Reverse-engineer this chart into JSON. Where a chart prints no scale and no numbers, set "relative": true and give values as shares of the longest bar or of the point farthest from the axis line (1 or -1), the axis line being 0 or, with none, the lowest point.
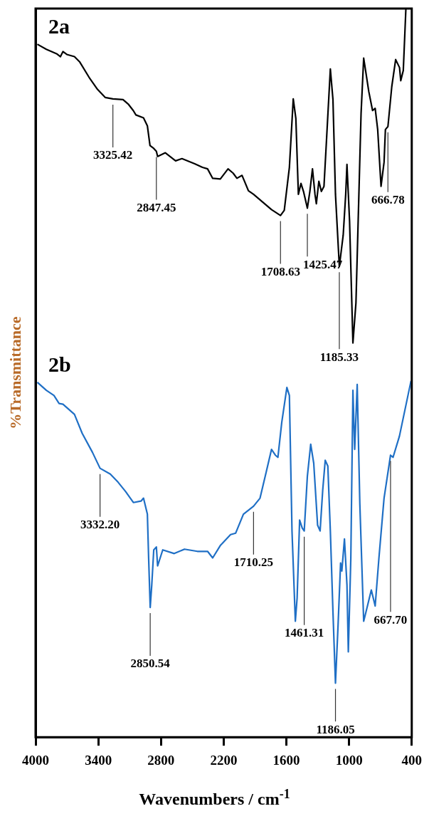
{
  "chart_data": {
    "type": "line",
    "xlabel": "Wavenumbers / cm$^{-1}$",
    "ylabel": "%Transmittance",
    "relative": true,
    "xlim": [
      4000,
      400
    ],
    "xticks": [
      4000,
      3400,
      2800,
      2200,
      1600,
      1000,
      400
    ],
    "legend": false,
    "grid": false,
    "marker": "none",
    "line_style": "solid",
    "series": [
      {
        "name": "2a",
        "color": "#000000",
        "x": [
          3983,
          3897,
          3799,
          3762,
          3738,
          3701,
          3628,
          3579,
          3481,
          3407,
          3334,
          3260,
          3163,
          3114,
          3065,
          3040,
          2967,
          2930,
          2905,
          2869,
          2844,
          2832,
          2758,
          2660,
          2599,
          2477,
          2403,
          2354,
          2305,
          2232,
          2158,
          2109,
          2073,
          2024,
          1963,
          1914,
          1742,
          1656,
          1620,
          1571,
          1534,
          1509,
          1485,
          1460,
          1436,
          1399,
          1375,
          1350,
          1326,
          1313,
          1289,
          1265,
          1240,
          1216,
          1179,
          1154,
          1130,
          1093,
          1056,
          1032,
          1020,
          995,
          963,
          934,
          885,
          860,
          811,
          775,
          750,
          726,
          694,
          665,
          652,
          628,
          591,
          554,
          517,
          505,
          481,
          456
        ],
        "values": [
          0.951,
          0.944,
          0.938,
          0.934,
          0.941,
          0.937,
          0.934,
          0.927,
          0.904,
          0.889,
          0.878,
          0.876,
          0.875,
          0.869,
          0.86,
          0.854,
          0.85,
          0.839,
          0.812,
          0.808,
          0.804,
          0.797,
          0.802,
          0.791,
          0.794,
          0.787,
          0.782,
          0.78,
          0.767,
          0.766,
          0.78,
          0.774,
          0.767,
          0.771,
          0.75,
          0.745,
          0.724,
          0.716,
          0.723,
          0.782,
          0.876,
          0.849,
          0.745,
          0.76,
          0.749,
          0.726,
          0.749,
          0.78,
          0.745,
          0.732,
          0.763,
          0.749,
          0.756,
          0.819,
          0.917,
          0.875,
          0.745,
          0.646,
          0.689,
          0.745,
          0.786,
          0.708,
          0.541,
          0.596,
          0.856,
          0.932,
          0.886,
          0.86,
          0.863,
          0.834,
          0.756,
          0.789,
          0.834,
          0.838,
          0.893,
          0.93,
          0.919,
          0.901,
          0.915,
          1.0
        ]
      },
      {
        "name": "2b",
        "color": "#1f6fc5",
        "x": [
          3983,
          3897,
          3824,
          3775,
          3738,
          3628,
          3554,
          3456,
          3383,
          3285,
          3211,
          3138,
          3064,
          2991,
          2967,
          2930,
          2918,
          2903,
          2888,
          2869,
          2844,
          2832,
          2783,
          2673,
          2575,
          2452,
          2354,
          2305,
          2232,
          2134,
          2085,
          2011,
          1914,
          1852,
          1791,
          1742,
          1705,
          1681,
          1644,
          1595,
          1571,
          1546,
          1514,
          1497,
          1473,
          1448,
          1429,
          1399,
          1367,
          1338,
          1301,
          1277,
          1252,
          1228,
          1203,
          1179,
          1154,
          1130,
          1105,
          1081,
          1069,
          1044,
          1020,
          1007,
          983,
          963,
          946,
          922,
          897,
          860,
          824,
          787,
          750,
          714,
          665,
          603,
          579,
          518,
          407
        ],
        "values": [
          0.487,
          0.476,
          0.469,
          0.458,
          0.457,
          0.443,
          0.417,
          0.391,
          0.369,
          0.361,
          0.35,
          0.337,
          0.322,
          0.324,
          0.328,
          0.306,
          0.246,
          0.178,
          0.209,
          0.257,
          0.261,
          0.235,
          0.257,
          0.252,
          0.258,
          0.255,
          0.255,
          0.246,
          0.263,
          0.278,
          0.28,
          0.306,
          0.317,
          0.328,
          0.365,
          0.395,
          0.387,
          0.384,
          0.432,
          0.48,
          0.469,
          0.283,
          0.159,
          0.191,
          0.298,
          0.287,
          0.283,
          0.358,
          0.402,
          0.376,
          0.291,
          0.283,
          0.339,
          0.38,
          0.372,
          0.283,
          0.172,
          0.074,
          0.154,
          0.239,
          0.228,
          0.272,
          0.209,
          0.117,
          0.246,
          0.476,
          0.395,
          0.484,
          0.321,
          0.159,
          0.18,
          0.202,
          0.18,
          0.246,
          0.328,
          0.387,
          0.384,
          0.413,
          0.489
        ]
      }
    ],
    "annotations": [
      {
        "text": "3325.42",
        "x": 3260,
        "y": 0.876
      },
      {
        "text": "2847.45",
        "x": 2844,
        "y": 0.804
      },
      {
        "text": "1708.63",
        "x": 1656,
        "y": 0.716
      },
      {
        "text": "1425.47",
        "x": 1399,
        "y": 0.726
      },
      {
        "text": "1185.33",
        "x": 1093,
        "y": 0.646
      },
      {
        "text": "666.78",
        "x": 628,
        "y": 0.838
      },
      {
        "text": "3332.20",
        "x": 3383,
        "y": 0.369
      },
      {
        "text": "2850.54",
        "x": 2903,
        "y": 0.178
      },
      {
        "text": "1710.25",
        "x": 1914,
        "y": 0.317
      },
      {
        "text": "1461.31",
        "x": 1429,
        "y": 0.283
      },
      {
        "text": "667.70",
        "x": 603,
        "y": 0.387
      },
      {
        "text": "1186.05",
        "x": 1130,
        "y": 0.074
      }
    ]
  }
}
